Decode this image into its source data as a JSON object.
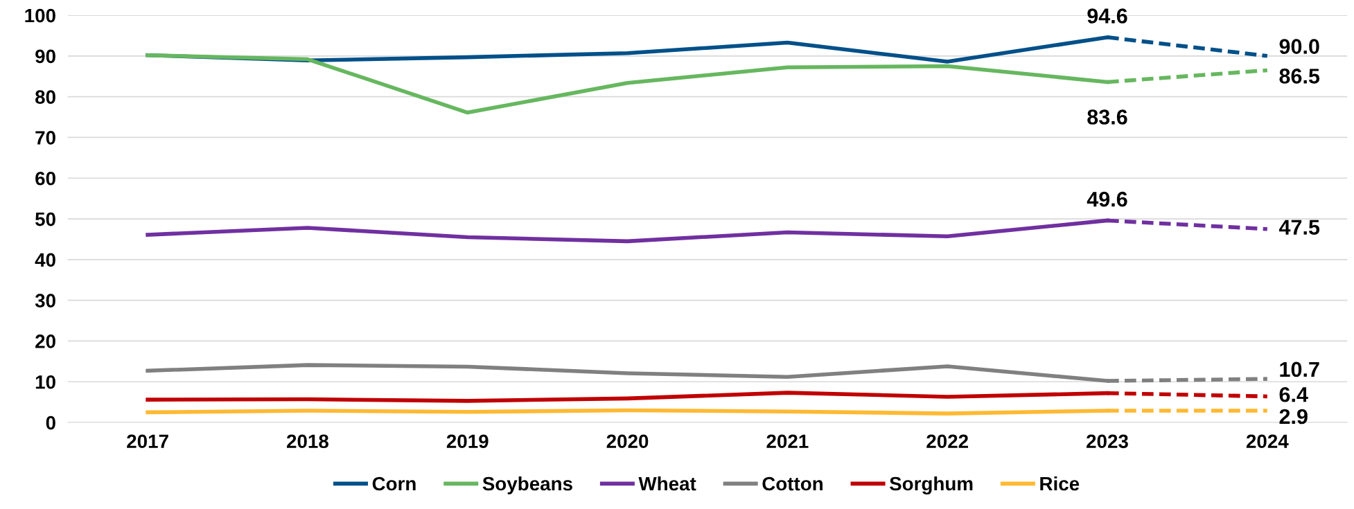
{
  "chart_data": {
    "type": "line",
    "categories": [
      "2017",
      "2018",
      "2019",
      "2020",
      "2021",
      "2022",
      "2023",
      "2024"
    ],
    "series": [
      {
        "name": "Corn",
        "color": "#005089",
        "line_style": "solid",
        "values": [
          90.2,
          88.9,
          89.7,
          90.7,
          93.3,
          88.6,
          94.6,
          null
        ]
      },
      {
        "name": "Soybeans",
        "color": "#66b75f",
        "line_style": "solid",
        "values": [
          90.2,
          89.2,
          76.1,
          83.4,
          87.2,
          87.5,
          83.6,
          null
        ]
      },
      {
        "name": "Wheat",
        "color": "#7030a0",
        "line_style": "solid",
        "values": [
          46.1,
          47.8,
          45.5,
          44.5,
          46.7,
          45.7,
          49.6,
          null
        ]
      },
      {
        "name": "Cotton",
        "color": "#808080",
        "line_style": "solid",
        "values": [
          12.7,
          14.1,
          13.7,
          12.1,
          11.2,
          13.8,
          10.2,
          null
        ]
      },
      {
        "name": "Sorghum",
        "color": "#c00000",
        "line_style": "solid",
        "values": [
          5.6,
          5.7,
          5.3,
          5.9,
          7.3,
          6.3,
          7.2,
          null
        ]
      },
      {
        "name": "Rice",
        "color": "#ffb932",
        "line_style": "solid",
        "values": [
          2.5,
          2.9,
          2.6,
          3.0,
          2.7,
          2.2,
          2.9,
          null
        ]
      },
      {
        "color": "#005089",
        "line_style": "dashed",
        "values": [
          null,
          null,
          null,
          null,
          null,
          null,
          94.6,
          90.0
        ],
        "value_labels": [
          null,
          null,
          null,
          null,
          null,
          null,
          "94.6",
          "90.0"
        ]
      },
      {
        "color": "#66b75f",
        "line_style": "dashed",
        "values": [
          null,
          null,
          null,
          null,
          null,
          null,
          83.6,
          86.5
        ],
        "value_labels": [
          null,
          null,
          null,
          null,
          null,
          null,
          "83.6",
          "86.5"
        ]
      },
      {
        "color": "#7030a0",
        "line_style": "dashed",
        "values": [
          null,
          null,
          null,
          null,
          null,
          null,
          49.6,
          47.5
        ],
        "value_labels": [
          null,
          null,
          null,
          null,
          null,
          null,
          "49.6",
          "47.5"
        ]
      },
      {
        "color": "#808080",
        "line_style": "dashed",
        "values": [
          null,
          null,
          null,
          null,
          null,
          null,
          10.2,
          10.7
        ],
        "value_labels": [
          null,
          null,
          null,
          null,
          null,
          null,
          null,
          "10.7"
        ]
      },
      {
        "color": "#c00000",
        "line_style": "dashed",
        "values": [
          null,
          null,
          null,
          null,
          null,
          null,
          7.2,
          6.4
        ],
        "value_labels": [
          null,
          null,
          null,
          null,
          null,
          null,
          null,
          "6.4"
        ]
      },
      {
        "color": "#ffb932",
        "line_style": "dashed",
        "values": [
          null,
          null,
          null,
          null,
          null,
          null,
          2.9,
          2.9
        ],
        "value_labels": [
          null,
          null,
          null,
          null,
          null,
          null,
          null,
          "2.9"
        ]
      }
    ],
    "ylim": [
      0,
      100
    ],
    "yticks": [
      0,
      10,
      20,
      30,
      40,
      50,
      60,
      70,
      80,
      90,
      100
    ],
    "grid": "y",
    "legend": "bottom",
    "marker": "none"
  }
}
